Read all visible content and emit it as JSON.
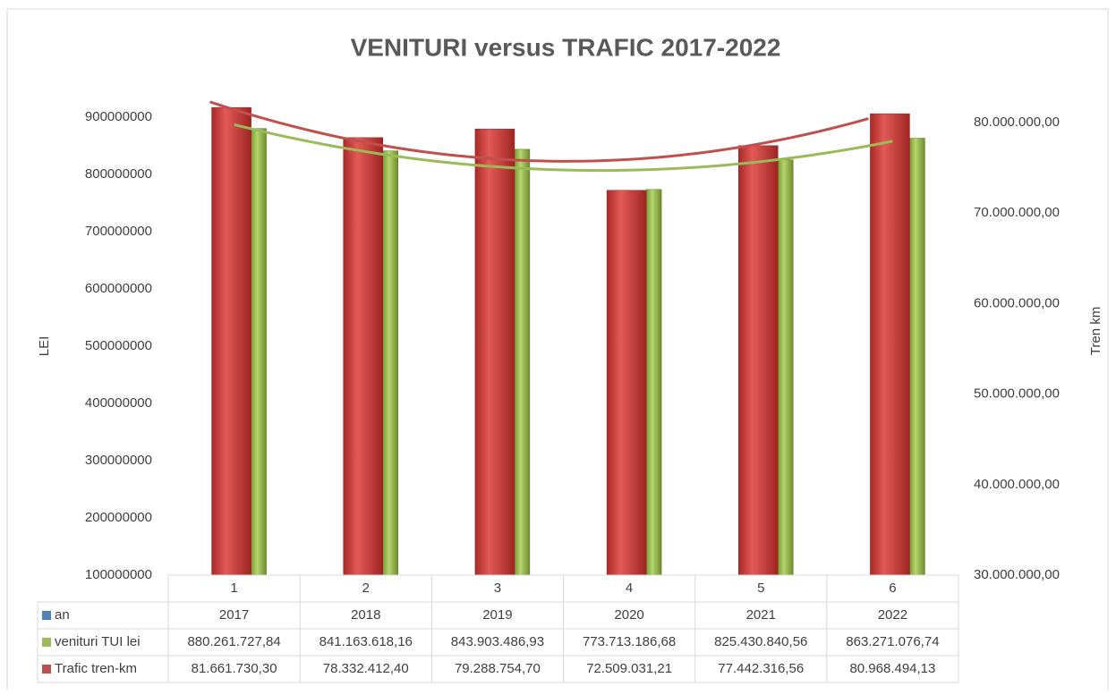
{
  "chart_data": {
    "type": "bar",
    "title": "VENITURI versus TRAFIC 2017-2022",
    "ylabel": "LEI",
    "y2label": "Tren km",
    "categories": [
      "1",
      "2",
      "3",
      "4",
      "5",
      "6"
    ],
    "ylim": [
      100000000,
      950000000
    ],
    "yticks": [
      100000000,
      200000000,
      300000000,
      400000000,
      500000000,
      600000000,
      700000000,
      800000000,
      900000000
    ],
    "y2lim": [
      30000000,
      83750000
    ],
    "y2ticks": [
      {
        "value": 30000000,
        "label": "30.000.000,00"
      },
      {
        "value": 40000000,
        "label": "40.000.000,00"
      },
      {
        "value": 50000000,
        "label": "50.000.000,00"
      },
      {
        "value": 60000000,
        "label": "60.000.000,00"
      },
      {
        "value": 70000000,
        "label": "70.000.000,00"
      },
      {
        "value": 80000000,
        "label": "80.000.000,00"
      }
    ],
    "trendline": "polynomial",
    "series": [
      {
        "name": "an",
        "color": "#4f81bd",
        "values": [
          2017,
          2018,
          2019,
          2020,
          2021,
          2022
        ]
      },
      {
        "name": "venituri TUI lei",
        "color": "#9bbb59",
        "values": [
          880261727.84,
          841163618.16,
          843903486.93,
          773713186.68,
          825430840.56,
          863271076.74
        ],
        "value_labels": [
          "880.261.727,84",
          "841.163.618,16",
          "843.903.486,93",
          "773.713.186,68",
          "825.430.840,56",
          "863.271.076,74"
        ]
      },
      {
        "name": "Trafic tren-km",
        "color": "#c0504d",
        "axis": "y2",
        "values": [
          81661730.3,
          78332412.4,
          79288754.7,
          72509031.21,
          77442316.56,
          80968494.13
        ],
        "value_labels": [
          "81.661.730,30",
          "78.332.412,40",
          "79.288.754,70",
          "72.509.031,21",
          "77.442.316,56",
          "80.968.494,13"
        ]
      }
    ]
  }
}
